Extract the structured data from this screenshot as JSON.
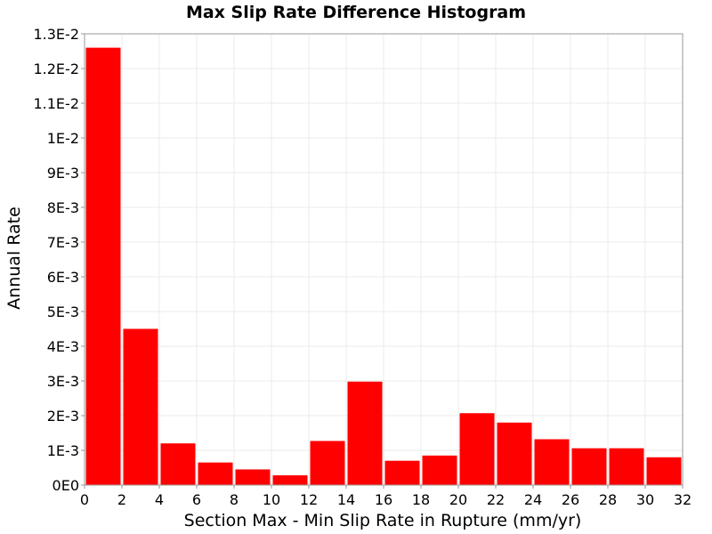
{
  "chart_data": {
    "type": "bar",
    "title": "Max Slip Rate Difference Histogram",
    "xlabel": "Section Max - Min Slip Rate in Rupture (mm/yr)",
    "ylabel": "Annual Rate",
    "xlim": [
      0,
      32
    ],
    "ylim": [
      0,
      0.013
    ],
    "bin_width": 2,
    "x": [
      1,
      3,
      5,
      7,
      9,
      11,
      13,
      15,
      17,
      19,
      21,
      23,
      25,
      27,
      29,
      31
    ],
    "values": [
      0.0126,
      0.0045,
      0.0012,
      0.00065,
      0.00045,
      0.00028,
      0.00127,
      0.00298,
      0.0007,
      0.00085,
      0.00207,
      0.0018,
      0.00132,
      0.00106,
      0.00106,
      0.0008
    ],
    "x_ticks": [
      0,
      2,
      4,
      6,
      8,
      10,
      12,
      14,
      16,
      18,
      20,
      22,
      24,
      26,
      28,
      30,
      32
    ],
    "y_ticks": [
      0,
      0.001,
      0.002,
      0.003,
      0.004,
      0.005,
      0.006,
      0.007,
      0.008,
      0.009,
      0.01,
      0.011,
      0.012,
      0.013
    ],
    "y_tick_labels": [
      "0E0",
      "1E-3",
      "2E-3",
      "3E-3",
      "4E-3",
      "5E-3",
      "6E-3",
      "7E-3",
      "8E-3",
      "9E-3",
      "1E-2",
      "1.1E-2",
      "1.2E-2",
      "1.3E-2"
    ],
    "bar_color": "#ff0000",
    "grid": true,
    "legend": "none"
  }
}
